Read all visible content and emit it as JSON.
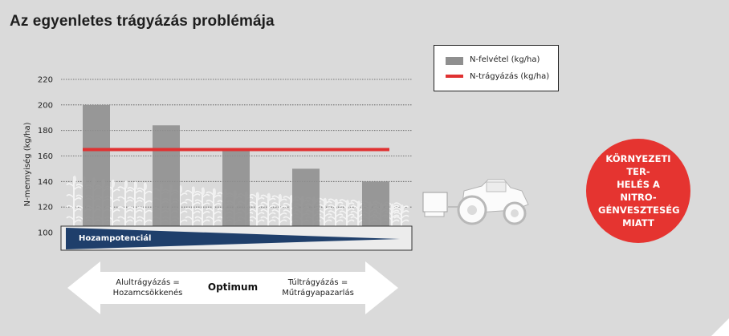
{
  "title": "Az egyenletes trágyázás problémája",
  "legend": {
    "bar_label": "N-felvétel (kg/ha)",
    "line_label": "N-trágyázás (kg/ha)"
  },
  "chart_data": {
    "type": "bar",
    "ylabel": "N-mennyiség  (kg/ha)",
    "ylim": [
      100,
      220
    ],
    "yticks": [
      100,
      120,
      140,
      160,
      180,
      200,
      220
    ],
    "grid": true,
    "series": [
      {
        "name": "N-felvétel (kg/ha)",
        "type": "bar",
        "values": [
          200,
          184,
          165,
          150,
          140
        ],
        "color": "#8f8f8f"
      },
      {
        "name": "N-trágyázás (kg/ha)",
        "type": "line",
        "values": [
          165,
          165,
          165,
          165,
          165
        ],
        "color": "#e03131"
      }
    ]
  },
  "yield_band": {
    "label": "Hozampotenciál",
    "color": "#1f3f6b"
  },
  "arrow": {
    "left_line1": "Alultrágyázás =",
    "left_line2": "Hozamcsökkenés",
    "center": "Optimum",
    "right_line1": "Túltrágyázás =",
    "right_line2": "Műtrágyapazarlás"
  },
  "circle": {
    "line1": "KÖRNYEZETI TER-",
    "line2": "HELÉS A NITRO-",
    "line3": "GÉNVESZTESÉG",
    "line4": "MIATT",
    "color": "#e53430"
  },
  "icons": [
    "corn-plant-icon",
    "tractor-icon"
  ]
}
